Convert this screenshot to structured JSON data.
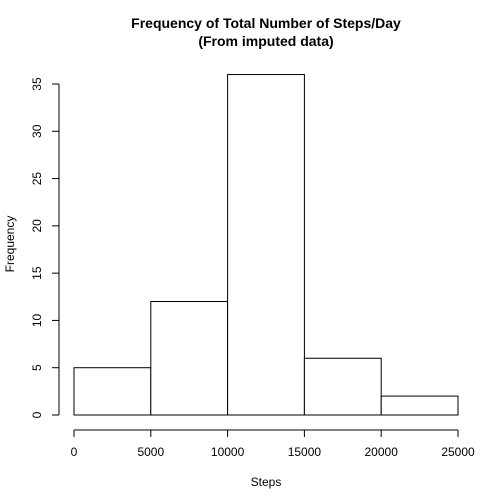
{
  "chart_data": {
    "type": "bar",
    "title": "Frequency of Total Number of Steps/Day",
    "subtitle": "(From imputed data)",
    "xlabel": "Steps",
    "ylabel": "Frequency",
    "bins": [
      {
        "start": 0,
        "end": 5000,
        "value": 5
      },
      {
        "start": 5000,
        "end": 10000,
        "value": 12
      },
      {
        "start": 10000,
        "end": 15000,
        "value": 36
      },
      {
        "start": 15000,
        "end": 20000,
        "value": 6
      },
      {
        "start": 20000,
        "end": 25000,
        "value": 2
      }
    ],
    "xlim": [
      0,
      25000
    ],
    "ylim": [
      0,
      35
    ],
    "xticks": [
      "0",
      "5000",
      "10000",
      "15000",
      "20000",
      "25000"
    ],
    "yticks": [
      "0",
      "5",
      "10",
      "15",
      "20",
      "25",
      "30",
      "35"
    ],
    "grid": false,
    "legend": "none"
  }
}
